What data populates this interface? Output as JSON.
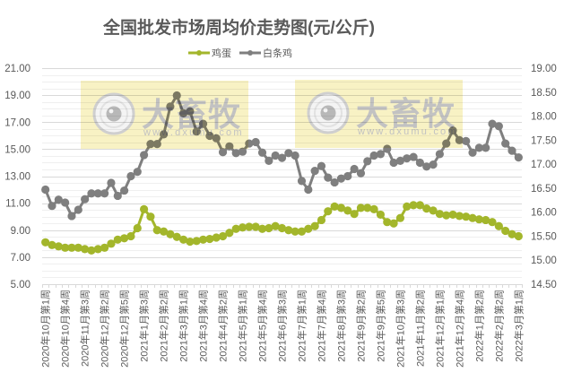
{
  "chart_data": {
    "type": "line",
    "title": "全国批发市场周均价走势图(元/公斤)",
    "xlabel": "",
    "ylabel": "",
    "legend_position": "top",
    "grid": true,
    "n_points": 73,
    "x_label_every": 3,
    "x_tick_labels": [
      "2020年10月第1周",
      "2020年10月第4周",
      "2020年11月第3周",
      "2020年12月第2周",
      "2020年12月第5周",
      "2021年1月第3周",
      "2021年2月第2周",
      "2021年3月第1周",
      "2021年3月第4周",
      "2021年4月第2周",
      "2021年5月第1周",
      "2021年5月第4周",
      "2021年6月第3周",
      "2021年7月第1周",
      "2021年7月第4周",
      "2021年8月第3周",
      "2021年9月第2周",
      "2021年9月第5周",
      "2021年10月第3周",
      "2021年11月第2周",
      "2021年12月第1周",
      "2021年12月第4周",
      "2022年1月第2周",
      "2022年2月第2周",
      "2022年3月第1周"
    ],
    "y_left": {
      "min": 5,
      "max": 21,
      "step": 2,
      "minor_step": 0.5,
      "tick_labels": [
        "5.00",
        "7.00",
        "9.00",
        "11.00",
        "13.00",
        "15.00",
        "17.00",
        "19.00",
        "21.00"
      ]
    },
    "y_right": {
      "min": 14.5,
      "max": 19,
      "step": 0.5,
      "tick_labels": [
        "14.50",
        "15.00",
        "15.50",
        "16.00",
        "16.50",
        "17.00",
        "17.50",
        "18.00",
        "18.50",
        "19.00"
      ]
    },
    "series": [
      {
        "name": "鸡蛋",
        "axis": "left",
        "color": "#A3B62B",
        "values": [
          8.1,
          7.9,
          7.8,
          7.7,
          7.7,
          7.7,
          7.6,
          7.5,
          7.6,
          7.7,
          8.0,
          8.3,
          8.4,
          8.55,
          9.15,
          10.55,
          10.0,
          9.0,
          8.9,
          8.7,
          8.5,
          8.3,
          8.15,
          8.2,
          8.3,
          8.35,
          8.45,
          8.55,
          8.8,
          9.1,
          9.2,
          9.25,
          9.25,
          9.1,
          9.15,
          9.3,
          9.15,
          9.0,
          8.9,
          8.9,
          9.1,
          9.3,
          9.75,
          10.4,
          10.75,
          10.65,
          10.45,
          10.2,
          10.65,
          10.65,
          10.55,
          10.15,
          9.6,
          9.5,
          9.9,
          10.75,
          10.85,
          10.85,
          10.6,
          10.45,
          10.2,
          10.1,
          10.15,
          10.05,
          10.0,
          9.9,
          9.8,
          9.75,
          9.6,
          9.3,
          8.95,
          8.7,
          8.55
        ]
      },
      {
        "name": "白条鸡",
        "axis": "right",
        "color": "#7F7F7F",
        "values": [
          16.47,
          16.13,
          16.26,
          16.2,
          15.92,
          16.05,
          16.27,
          16.39,
          16.39,
          16.39,
          16.61,
          16.34,
          16.45,
          16.75,
          16.84,
          17.19,
          17.42,
          17.42,
          17.62,
          18.2,
          18.43,
          18.06,
          18.1,
          17.68,
          17.84,
          17.59,
          17.54,
          17.25,
          17.37,
          17.23,
          17.26,
          17.43,
          17.46,
          17.24,
          17.07,
          17.18,
          17.13,
          17.23,
          17.18,
          16.65,
          16.47,
          16.86,
          16.96,
          16.72,
          16.62,
          16.7,
          16.75,
          16.9,
          16.81,
          17.06,
          17.18,
          17.21,
          17.32,
          17.03,
          17.07,
          17.12,
          17.15,
          17.03,
          16.95,
          16.99,
          17.21,
          17.43,
          17.7,
          17.5,
          17.48,
          17.24,
          17.34,
          17.34,
          17.84,
          17.79,
          17.43,
          17.28,
          17.14
        ]
      }
    ]
  },
  "colors": {
    "text": "#595959",
    "grid_major": "#D9D9D9",
    "grid_minor": "#EFEFEF",
    "watermark_box": "#F8F2C4",
    "watermark_text": "#C2C2C2"
  },
  "watermark": {
    "brand": "大畜牧",
    "url": "www.dxumu.com",
    "count": 2
  }
}
